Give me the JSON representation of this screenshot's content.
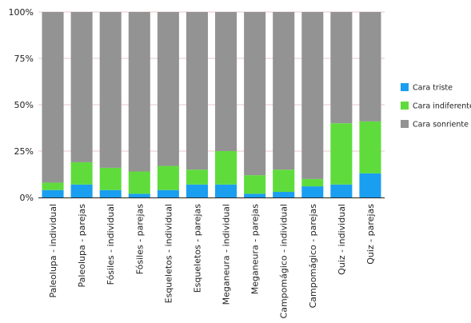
{
  "chart_data": {
    "type": "bar",
    "stacked": true,
    "categories": [
      "Paleolupa - individual",
      "Paleolupa - parejas",
      "Fósiles - individual",
      "Fósiles - parejas",
      "Esqueletos - individual",
      "Esqueletos - parejas",
      "Meganeura - individual",
      "Meganeura - parejas",
      "Campomágico - individual",
      "Campomágico - parejas",
      "Quiz - individual",
      "Quiz - parejas"
    ],
    "series": [
      {
        "name": "Cara triste",
        "color": "#1a9ef0",
        "values": [
          4,
          7,
          4,
          2,
          4,
          7,
          7,
          2,
          3,
          6,
          7,
          13
        ]
      },
      {
        "name": "Cara indiferente",
        "color": "#5fdc3c",
        "values": [
          4,
          12,
          12,
          12,
          13,
          8,
          18,
          10,
          12,
          4,
          33,
          28
        ]
      },
      {
        "name": "Cara sonriente",
        "color": "#939393",
        "values": [
          92,
          81,
          84,
          86,
          83,
          85,
          75,
          88,
          85,
          90,
          60,
          59
        ]
      }
    ],
    "yticks": [
      "0%",
      "25%",
      "50%",
      "75%",
      "100%"
    ],
    "ylim": [
      0,
      100
    ],
    "legend_position": "right",
    "grid": true
  }
}
